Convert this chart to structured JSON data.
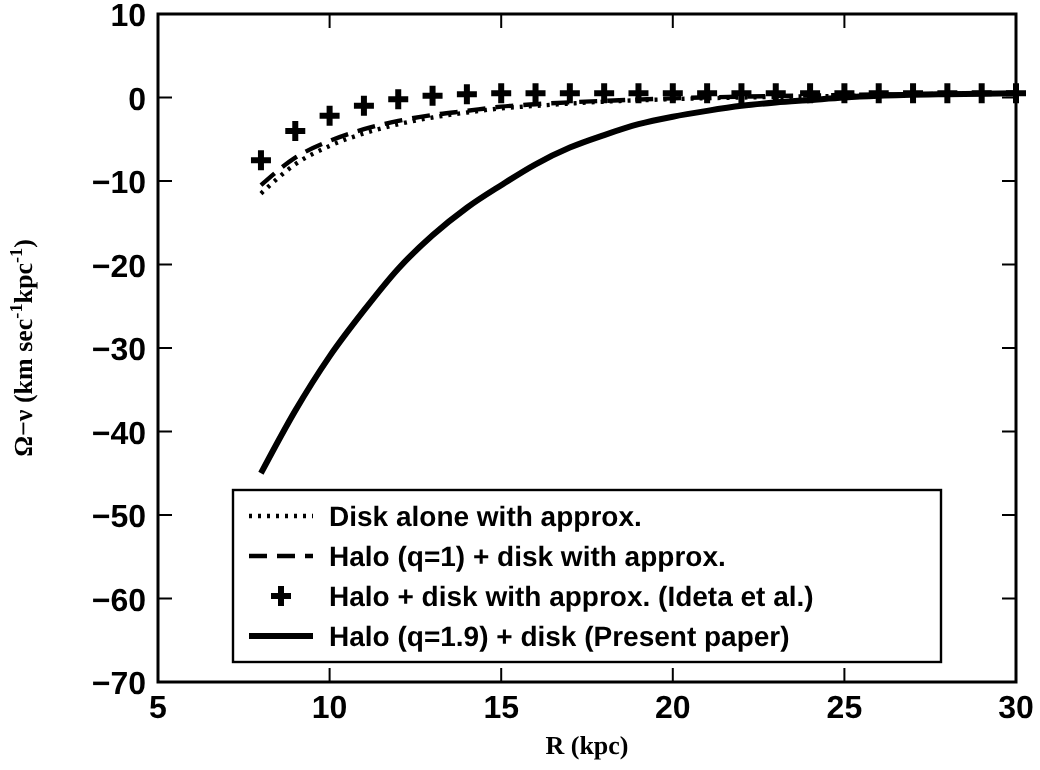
{
  "chart_data": {
    "type": "line",
    "xlabel": "R (kpc)",
    "ylabel": "Ω−ν (km sec$^{-1}$kpc$^{-1}$)",
    "xlim": [
      5,
      30
    ],
    "xticks": [
      5,
      10,
      15,
      20,
      25,
      30
    ],
    "ylim": [
      -70,
      10
    ],
    "yticks": [
      -70,
      -60,
      -50,
      -40,
      -30,
      -20,
      -10,
      0,
      10
    ],
    "x": [
      8,
      9,
      10,
      11,
      12,
      13,
      14,
      15,
      16,
      18,
      20,
      25,
      30
    ],
    "legend": "bottom",
    "series": [
      {
        "name": "Disk alone with approx.",
        "color": "#000000",
        "line_style": "dotted",
        "marker": "none",
        "values": [
          -11.5,
          -8,
          -5.8,
          -4.3,
          -3.2,
          -2.4,
          -1.8,
          -1.3,
          -1,
          -0.5,
          -0.2,
          0.2,
          0.5
        ]
      },
      {
        "name": "Halo (q=1) + disk with approx.",
        "color": "#000000",
        "line_style": "dashed",
        "marker": "none",
        "values": [
          -10.5,
          -7.2,
          -5.2,
          -3.8,
          -2.8,
          -2.1,
          -1.6,
          -1.1,
          -0.8,
          -0.4,
          -0.1,
          0.3,
          0.5
        ]
      },
      {
        "name": "Halo + disk with approx. (Ideta et al.)",
        "type": "scatter",
        "color": "#000000",
        "marker": "cross",
        "x": [
          8,
          9,
          10,
          11,
          12,
          13,
          14,
          15,
          16,
          17,
          18,
          19,
          20,
          21,
          22,
          23,
          24,
          25,
          26,
          27,
          28,
          29,
          30
        ],
        "values": [
          -7.5,
          -4,
          -2.2,
          -1,
          -0.2,
          0.2,
          0.4,
          0.5,
          0.5,
          0.5,
          0.5,
          0.5,
          0.5,
          0.5,
          0.5,
          0.5,
          0.5,
          0.5,
          0.5,
          0.5,
          0.5,
          0.5,
          0.5
        ]
      },
      {
        "name": "Halo (q=1.9) + disk (Present paper)",
        "color": "#000000",
        "line_style": "solid",
        "marker": "none",
        "x": [
          8,
          9,
          10,
          11,
          12,
          13,
          14,
          15,
          16,
          17,
          18,
          19,
          20,
          21,
          22,
          23,
          24,
          25,
          26,
          28,
          30
        ],
        "values": [
          -45,
          -37.5,
          -31,
          -25.5,
          -20.5,
          -16.5,
          -13.2,
          -10.5,
          -8,
          -6,
          -4.5,
          -3.2,
          -2.3,
          -1.6,
          -1,
          -0.6,
          -0.3,
          0,
          0.2,
          0.4,
          0.5
        ]
      }
    ]
  }
}
